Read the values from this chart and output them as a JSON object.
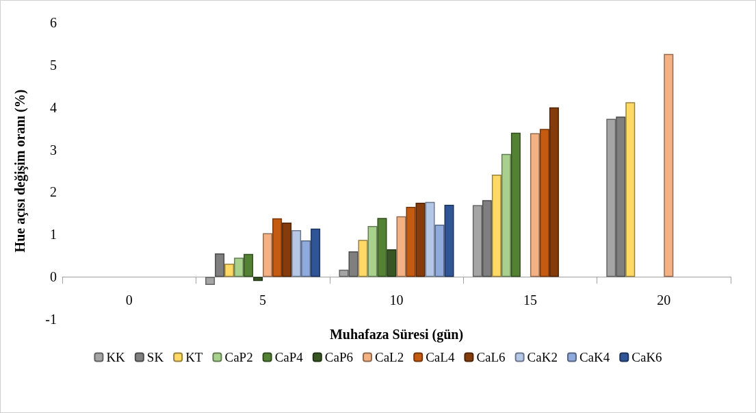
{
  "chart_data": {
    "type": "bar",
    "xlabel": "Muhafaza Süresi (gün)",
    "ylabel": "Hue açısı değişim oranı (%)",
    "categories": [
      "0",
      "5",
      "10",
      "15",
      "20"
    ],
    "series": [
      {
        "name": "KK",
        "color": "#a5a5a5",
        "values": [
          null,
          -0.19,
          0.17,
          1.69,
          3.73
        ]
      },
      {
        "name": "SK",
        "color": "#7f7f7f",
        "values": [
          null,
          0.55,
          0.6,
          1.81,
          3.78
        ]
      },
      {
        "name": "KT",
        "color": "#ffd966",
        "values": [
          null,
          0.31,
          0.87,
          2.41,
          4.12
        ]
      },
      {
        "name": "CaP2",
        "color": "#a9d18e",
        "values": [
          null,
          0.45,
          1.2,
          2.9,
          null
        ]
      },
      {
        "name": "CaP4",
        "color": "#548235",
        "values": [
          null,
          0.54,
          1.39,
          3.4,
          null
        ]
      },
      {
        "name": "CaP6",
        "color": "#375623",
        "values": [
          null,
          -0.1,
          0.65,
          null,
          null
        ]
      },
      {
        "name": "CaL2",
        "color": "#f4b183",
        "values": [
          null,
          1.03,
          1.43,
          3.39,
          5.26
        ]
      },
      {
        "name": "CaL4",
        "color": "#c55a11",
        "values": [
          null,
          1.38,
          1.65,
          3.49,
          null
        ]
      },
      {
        "name": "CaL6",
        "color": "#843c0c",
        "values": [
          null,
          1.28,
          1.75,
          4.0,
          null
        ]
      },
      {
        "name": "CaK2",
        "color": "#b4c7e7",
        "values": [
          null,
          1.1,
          1.77,
          null,
          null
        ]
      },
      {
        "name": "CaK4",
        "color": "#8faadc",
        "values": [
          null,
          0.86,
          1.23,
          null,
          null
        ]
      },
      {
        "name": "CaK6",
        "color": "#2f5597",
        "values": [
          null,
          1.14,
          1.7,
          null,
          null
        ]
      }
    ],
    "ylim": [
      -1,
      6
    ],
    "yticks": [
      -1,
      0,
      1,
      2,
      3,
      4,
      5,
      6
    ],
    "grid": false,
    "legend": "bottom"
  }
}
